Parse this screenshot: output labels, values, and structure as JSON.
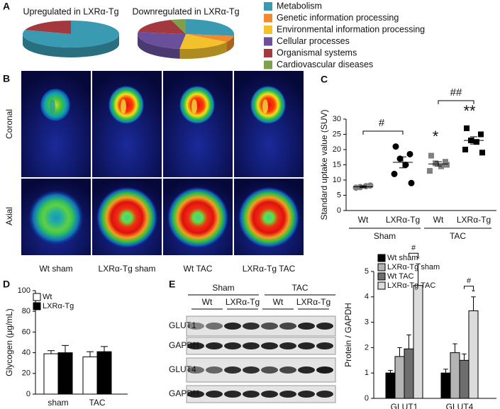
{
  "panel_labels": [
    "A",
    "B",
    "C",
    "D",
    "E"
  ],
  "legend": {
    "categories": [
      "Metabolism",
      "Genetic information processing",
      "Environmental information processing",
      "Cellular processes",
      "Organismal systems",
      "Cardiovascular diseases"
    ],
    "colors": [
      "#3a9ab2",
      "#ef8a2e",
      "#f2c12c",
      "#6a4f9a",
      "#a3383f",
      "#7ea048"
    ]
  },
  "imaging": {
    "row_labels": [
      "Coronal",
      "Axial"
    ],
    "column_labels": [
      "Wt sham",
      "LXRα-Tg sham",
      "Wt TAC",
      "LXRα-Tg TAC"
    ]
  },
  "blot": {
    "groups": [
      "Sham",
      "TAC"
    ],
    "lanes": [
      "Wt",
      "LXRα-Tg",
      "Wt",
      "LXRα-Tg"
    ],
    "rows": [
      "GLUT1",
      "GAPDH",
      "GLUT4",
      "GAPDH"
    ]
  },
  "chart_data": [
    {
      "type": "pie",
      "title": "Upregulated in LXRα-Tg",
      "values": [
        80,
        0,
        0,
        0,
        20,
        0
      ]
    },
    {
      "type": "pie",
      "title": "Downregulated in LXRα-Tg",
      "values": [
        27,
        7,
        18,
        25,
        18,
        5
      ]
    },
    {
      "type": "strip",
      "ylabel": "Standard uptake value (SUV)",
      "categories": [
        "Wt",
        "LXRα-Tg",
        "Wt",
        "LXRα-Tg"
      ],
      "groups": [
        "Sham",
        "TAC"
      ],
      "points": [
        [
          7.5,
          8.2,
          7.7,
          8.0
        ],
        [
          21,
          18.5,
          17,
          15,
          12,
          9
        ],
        [
          18,
          16,
          15.5,
          14.5,
          13,
          15
        ],
        [
          27,
          25,
          23,
          22.5,
          20,
          19
        ]
      ],
      "means": [
        7.8,
        15.8,
        15.3,
        23
      ],
      "sem": [
        0.3,
        1.8,
        0.7,
        1.2
      ],
      "colors": [
        "#808080",
        "#000000",
        "#808080",
        "#000000"
      ],
      "markers": [
        "circle",
        "circle",
        "square",
        "square"
      ],
      "annotations": [
        "#",
        "##",
        "*",
        "**"
      ],
      "ylim": [
        0,
        30
      ],
      "yticks": [
        0,
        5,
        10,
        15,
        20,
        25,
        30
      ]
    },
    {
      "type": "bar",
      "ylabel": "Glycogen (μg/mL)",
      "categories": [
        "sham",
        "TAC"
      ],
      "ylim": [
        0,
        100
      ],
      "yticks": [
        0,
        20,
        40,
        60,
        80,
        100
      ],
      "series": [
        {
          "name": "Wt",
          "color": "#ffffff",
          "values": [
            39,
            36
          ],
          "errors": [
            3,
            5
          ]
        },
        {
          "name": "LXRα-Tg",
          "color": "#000000",
          "values": [
            40,
            41
          ],
          "errors": [
            7,
            5
          ]
        }
      ]
    },
    {
      "type": "bar",
      "ylabel": "Protein / GAPDH",
      "categories": [
        "GLUT1",
        "GLUT4"
      ],
      "ylim": [
        0,
        5
      ],
      "yticks": [
        0,
        1,
        2,
        3,
        4,
        5
      ],
      "series": [
        {
          "name": "Wt sham",
          "color": "#000000",
          "values": [
            1.0,
            1.0
          ],
          "errors": [
            0.1,
            0.15
          ]
        },
        {
          "name": "LXRα-Tg sham",
          "color": "#b4b4b4",
          "values": [
            1.65,
            1.8
          ],
          "errors": [
            0.35,
            0.35
          ]
        },
        {
          "name": "Wt TAC",
          "color": "#6e6e6e",
          "values": [
            1.95,
            1.5
          ],
          "errors": [
            0.55,
            0.25
          ]
        },
        {
          "name": "LXRα-Tg TAC",
          "color": "#dcdcdc",
          "values": [
            4.45,
            3.45
          ],
          "errors": [
            0.85,
            0.55
          ]
        }
      ],
      "annotations": [
        [
          "#",
          "*"
        ],
        [
          "#",
          "*"
        ]
      ]
    }
  ]
}
